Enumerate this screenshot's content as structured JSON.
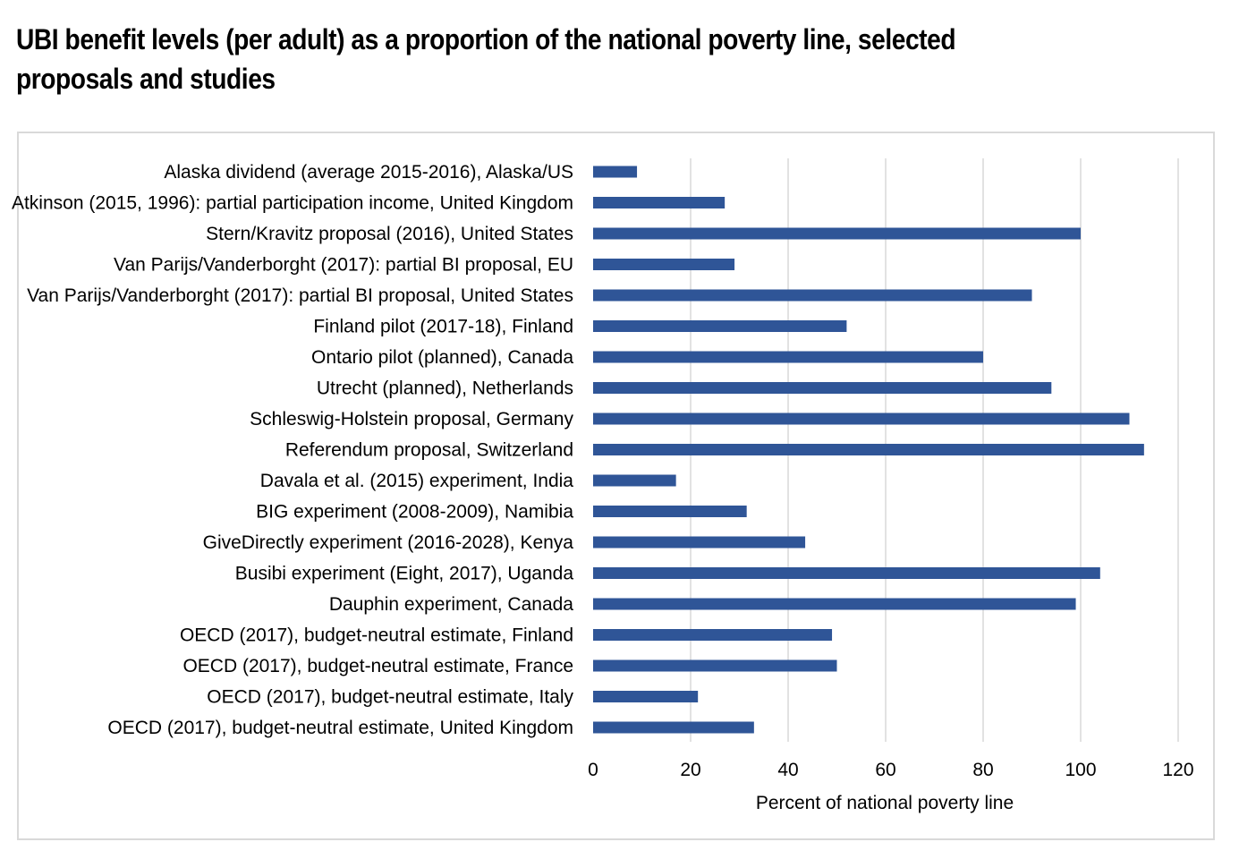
{
  "title": "UBI benefit levels (per adult) as a proportion of the national poverty line, selected proposals and studies",
  "chart_data": {
    "type": "bar",
    "orientation": "horizontal",
    "categories": [
      "Alaska dividend (average 2015-2016), Alaska/US",
      "Atkinson (2015, 1996): partial participation income, United Kingdom",
      "Stern/Kravitz proposal (2016), United States",
      "Van Parijs/Vanderborght (2017): partial BI proposal, EU",
      "Van Parijs/Vanderborght (2017): partial BI proposal, United States",
      "Finland pilot (2017-18), Finland",
      "Ontario pilot (planned), Canada",
      "Utrecht (planned), Netherlands",
      "Schleswig-Holstein proposal, Germany",
      "Referendum proposal, Switzerland",
      "Davala et al. (2015) experiment, India",
      "BIG experiment (2008-2009), Namibia",
      "GiveDirectly experiment (2016-2028), Kenya",
      "Busibi experiment (Eight, 2017), Uganda",
      "Dauphin experiment, Canada",
      "OECD (2017), budget-neutral estimate, Finland",
      "OECD (2017), budget-neutral estimate, France",
      "OECD (2017), budget-neutral estimate, Italy",
      "OECD (2017), budget-neutral estimate, United Kingdom"
    ],
    "values": [
      9,
      27,
      100,
      29,
      90,
      52,
      80,
      94,
      110,
      113,
      17,
      31.5,
      43.5,
      104,
      99,
      49,
      50,
      21.5,
      33
    ],
    "xlabel": "Percent of national poverty line",
    "ylabel": "",
    "xlim": [
      0,
      120
    ],
    "xticks": [
      "0",
      "20",
      "40",
      "60",
      "80",
      "100",
      "120"
    ],
    "grid": "vertical",
    "legend": "none",
    "bar_color": "#2f5597"
  }
}
